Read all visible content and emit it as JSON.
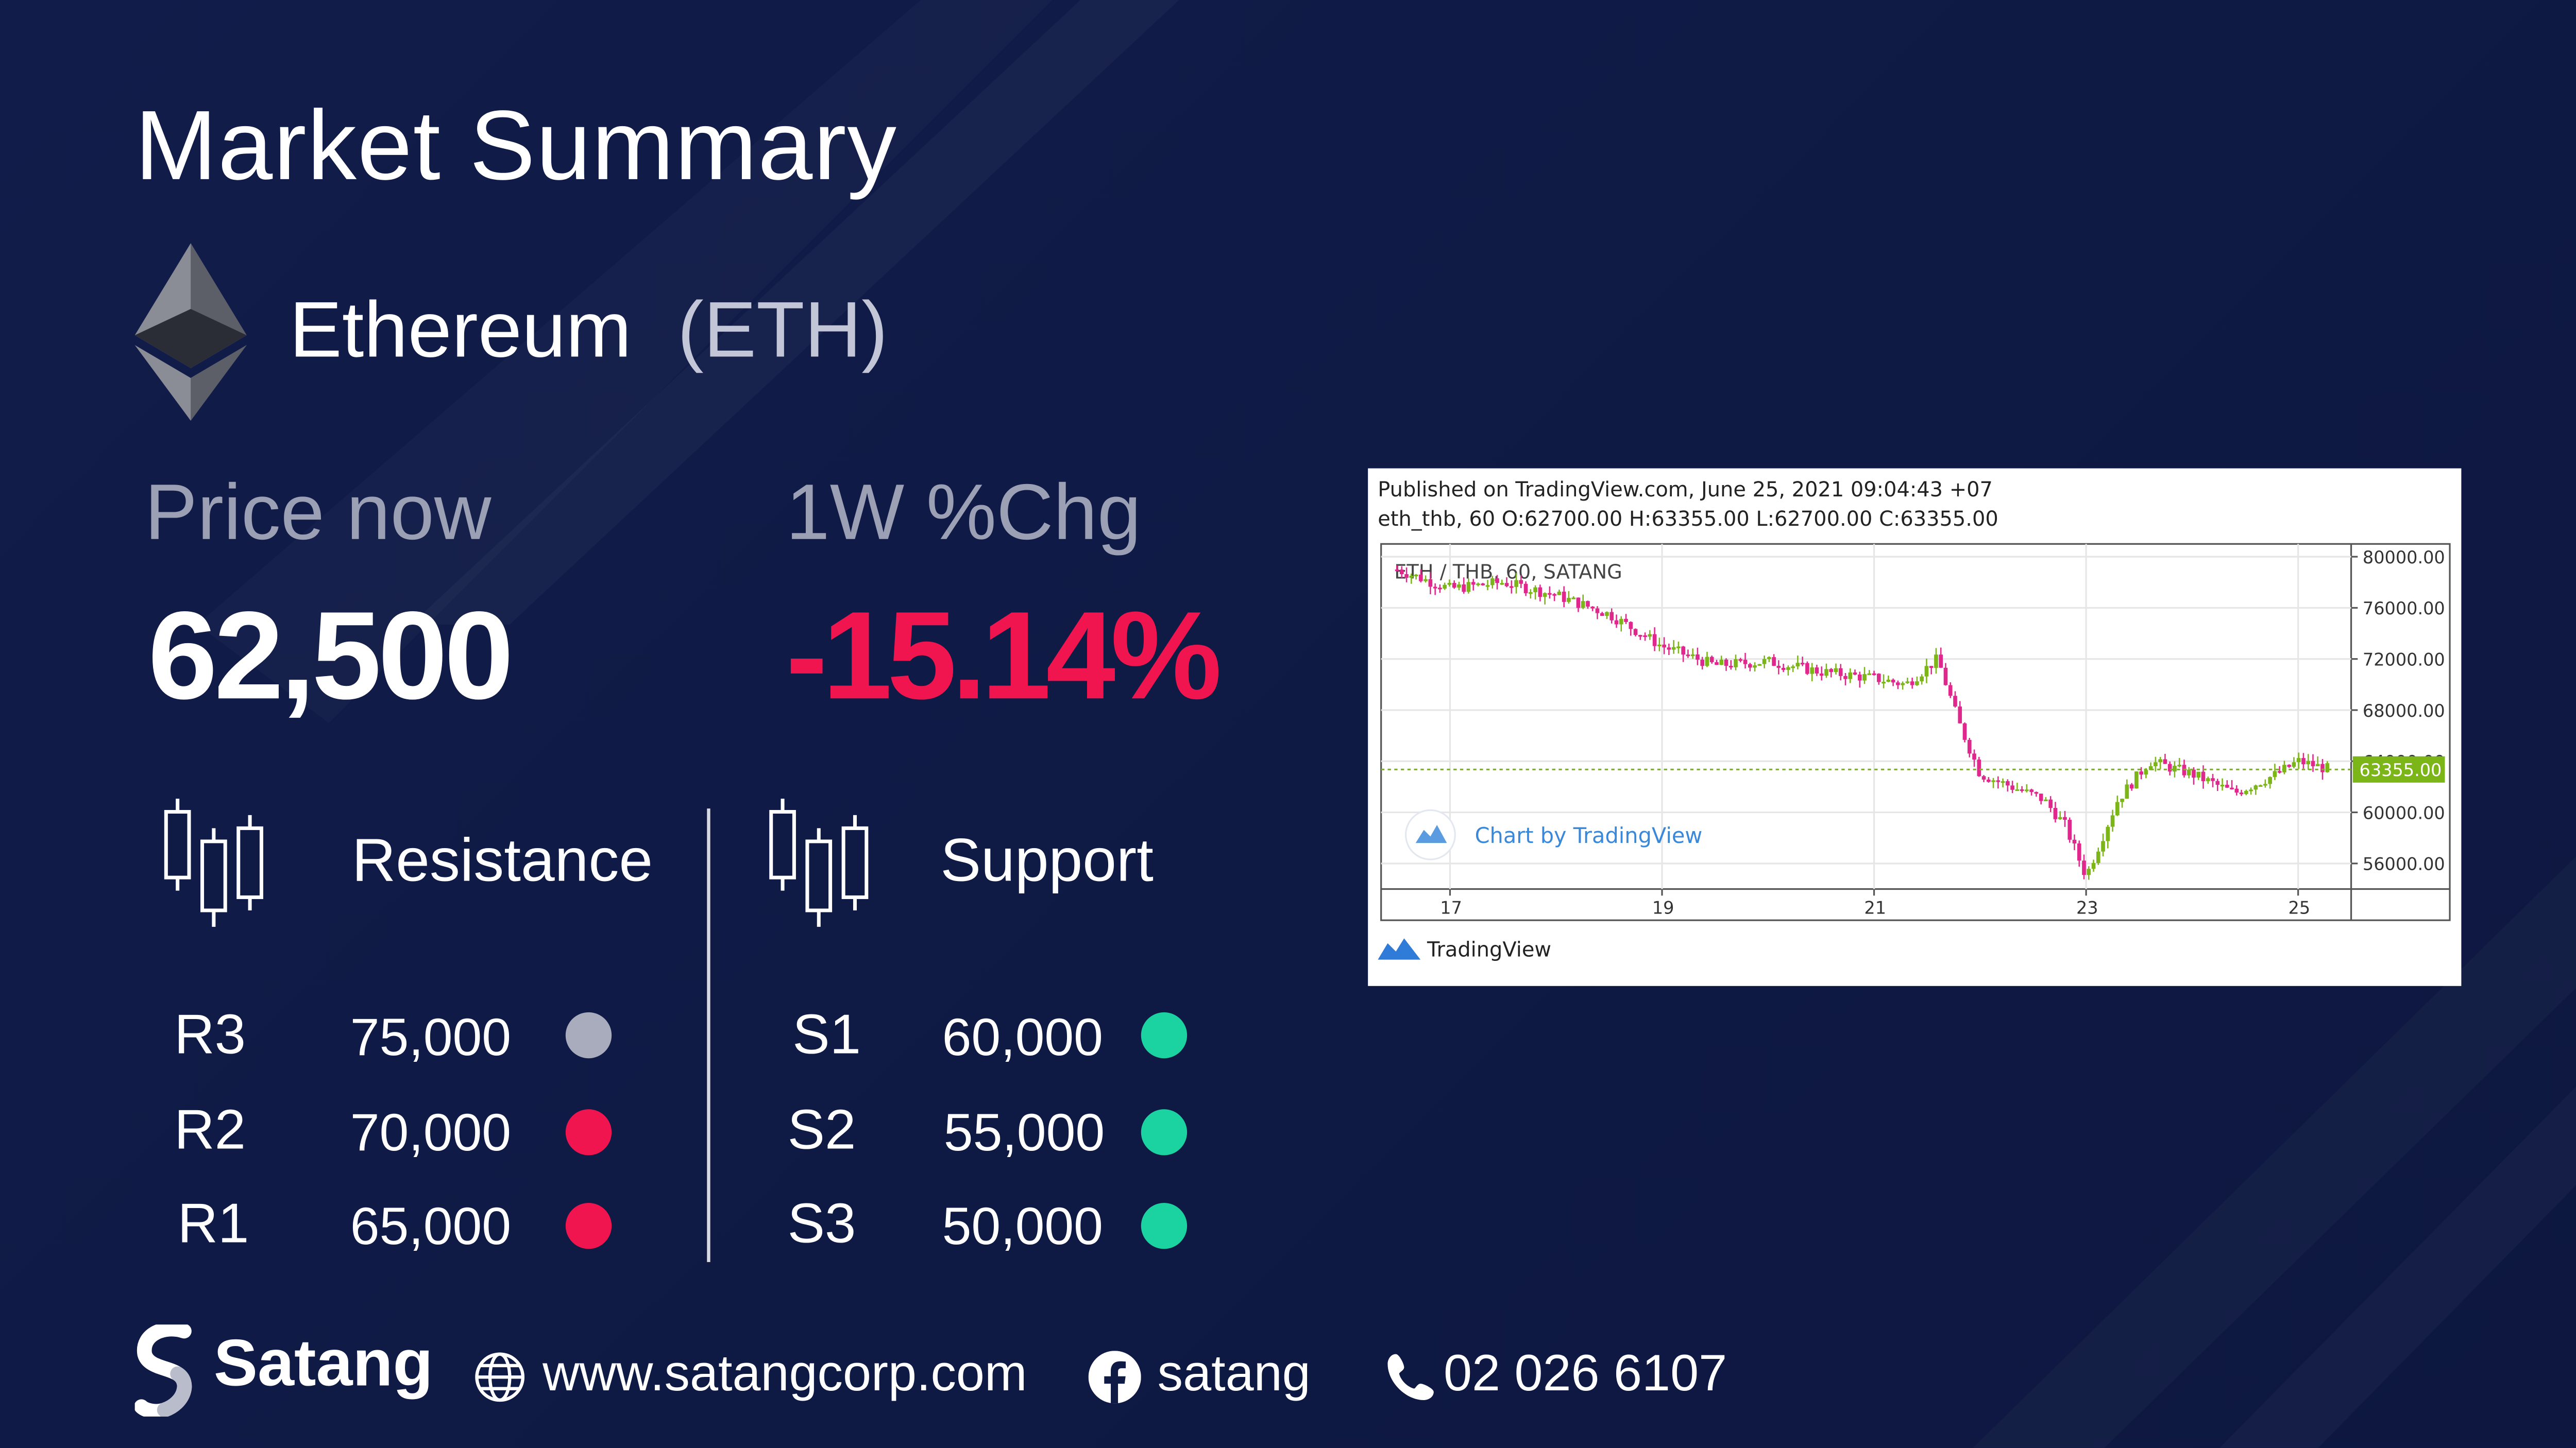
{
  "header": {
    "title": "Market Summary"
  },
  "coin": {
    "name": "Ethereum",
    "ticker": "(ETH)"
  },
  "price": {
    "label": "Price now",
    "value": "62,500"
  },
  "change": {
    "label": "1W %Chg",
    "value": "-15.14%",
    "color": "#f0154f"
  },
  "resistance": {
    "title": "Resistance",
    "levels": [
      {
        "label": "R3",
        "value": "75,000",
        "color": "#a9acbd"
      },
      {
        "label": "R2",
        "value": "70,000",
        "color": "#f0154f"
      },
      {
        "label": "R1",
        "value": "65,000",
        "color": "#f0154f"
      }
    ]
  },
  "support": {
    "title": "Support",
    "levels": [
      {
        "label": "S1",
        "value": "60,000",
        "color": "#1bd3a0"
      },
      {
        "label": "S2",
        "value": "55,000",
        "color": "#1bd3a0"
      },
      {
        "label": "S3",
        "value": "50,000",
        "color": "#1bd3a0"
      }
    ]
  },
  "tv_chart": {
    "published": "Published on TradingView.com, June 25, 2021 09:04:43 +07",
    "ohlc": "eth_thb, 60 O:62700.00 H:63355.00 L:62700.00 C:63355.00",
    "symbol": "ETH / THB, 60, SATANG",
    "watermark": "Chart by TradingView",
    "brand": "TradingView",
    "last_price_label": "63355.00",
    "y_ticks": [
      "80000.00",
      "76000.00",
      "72000.00",
      "68000.00",
      "64000.00",
      "60000.00",
      "56000.00"
    ],
    "x_ticks": [
      "17",
      "19",
      "21",
      "23",
      "25"
    ],
    "up_color": "#7cb518",
    "down_color": "#e0288c"
  },
  "chart_data": {
    "type": "line",
    "title": "ETH / THB, 60, SATANG",
    "xlabel": "",
    "ylabel": "",
    "x": [
      "16.5",
      "17",
      "17.5",
      "18",
      "18.5",
      "19",
      "19.5",
      "20",
      "20.5",
      "21",
      "21.3",
      "21.6",
      "21.8",
      "22",
      "22.3",
      "22.6",
      "22.8",
      "23",
      "23.3",
      "23.6",
      "24",
      "24.4",
      "24.8",
      "25",
      "25.3"
    ],
    "series": [
      {
        "name": "eth_thb",
        "values": [
          79000,
          77500,
          78000,
          77000,
          75500,
          73000,
          71500,
          71800,
          71000,
          70500,
          70000,
          72000,
          67000,
          63000,
          62000,
          61000,
          59000,
          55000,
          61000,
          64000,
          63000,
          61500,
          63000,
          64000,
          63355
        ]
      }
    ],
    "ylim": [
      54000,
      81000
    ],
    "last_price": 63355,
    "grid": true
  },
  "footer": {
    "brand": "Satang",
    "website": "www.satangcorp.com",
    "facebook": "satang",
    "phone": "02 026 6107"
  }
}
